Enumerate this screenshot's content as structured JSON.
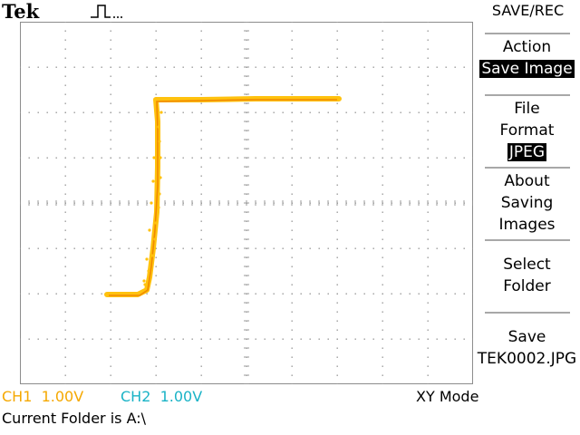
{
  "header": {
    "brand": "Tek",
    "acquisition_icon": "pulse-waveform-icon"
  },
  "menu": {
    "title": "SAVE/REC",
    "items": [
      {
        "lines": [
          "Action"
        ],
        "value": "Save Image"
      },
      {
        "lines": [
          "File",
          "Format"
        ],
        "value": "JPEG"
      },
      {
        "lines": [
          "About",
          "Saving",
          "Images"
        ]
      },
      {
        "lines": [
          "Select",
          "Folder"
        ]
      },
      {
        "lines": [
          "Save",
          "TEK0002.JPG"
        ]
      }
    ]
  },
  "status": {
    "ch1_label": "CH1",
    "ch1_scale": "1.00V",
    "ch2_label": "CH2",
    "ch2_scale": "1.00V",
    "mode": "XY Mode",
    "folder_message": "Current Folder is A:\\"
  },
  "colors": {
    "ch1": "#f5a800",
    "ch2": "#1ab3c6",
    "trace": "#ffc20e",
    "grid": "#9a9a9a"
  }
}
